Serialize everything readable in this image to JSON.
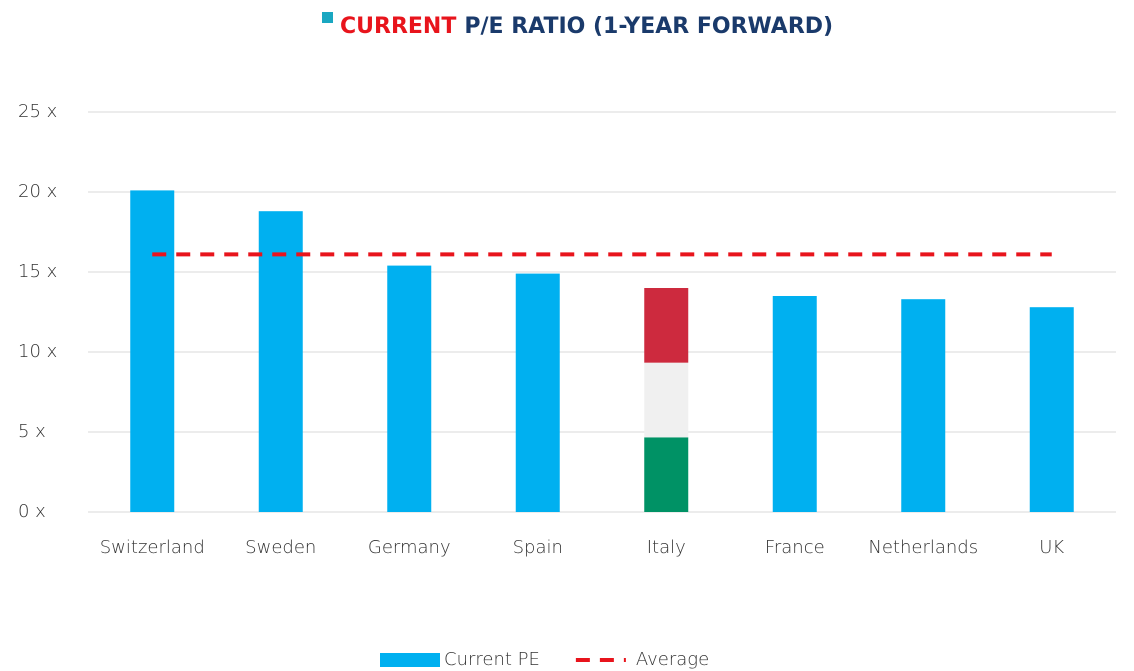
{
  "chart_data": {
    "type": "bar",
    "title_highlight": "CURRENT",
    "title": "P/E RATIO (1-YEAR FORWARD)",
    "categories": [
      "Switzerland",
      "Sweden",
      "Germany",
      "Spain",
      "Italy",
      "France",
      "Netherlands",
      "UK"
    ],
    "series": [
      {
        "name": "Current PE",
        "color": "#00b0f0",
        "values": [
          20.1,
          18.8,
          15.4,
          14.9,
          14.0,
          13.5,
          13.3,
          12.8
        ],
        "special_bars": [
          {
            "index": 4,
            "colors": [
              "#009265",
              "#f0f0f0",
              "#cd2a3e"
            ]
          }
        ]
      },
      {
        "name": "Average",
        "type": "line",
        "dashed": true,
        "color": "#e8141c",
        "values": [
          16.1,
          16.1,
          16.1,
          16.1,
          16.1,
          16.1,
          16.1,
          16.1
        ]
      }
    ],
    "ylim": [
      0,
      25
    ],
    "yticks": [
      {
        "value": 0,
        "label": "0  x"
      },
      {
        "value": 5,
        "label": "5  x"
      },
      {
        "value": 10,
        "label": "10  x"
      },
      {
        "value": 15,
        "label": "15  x"
      },
      {
        "value": 20,
        "label": "20  x"
      },
      {
        "value": 25,
        "label": "25  x"
      }
    ],
    "grid": true,
    "legend": "bottom"
  }
}
